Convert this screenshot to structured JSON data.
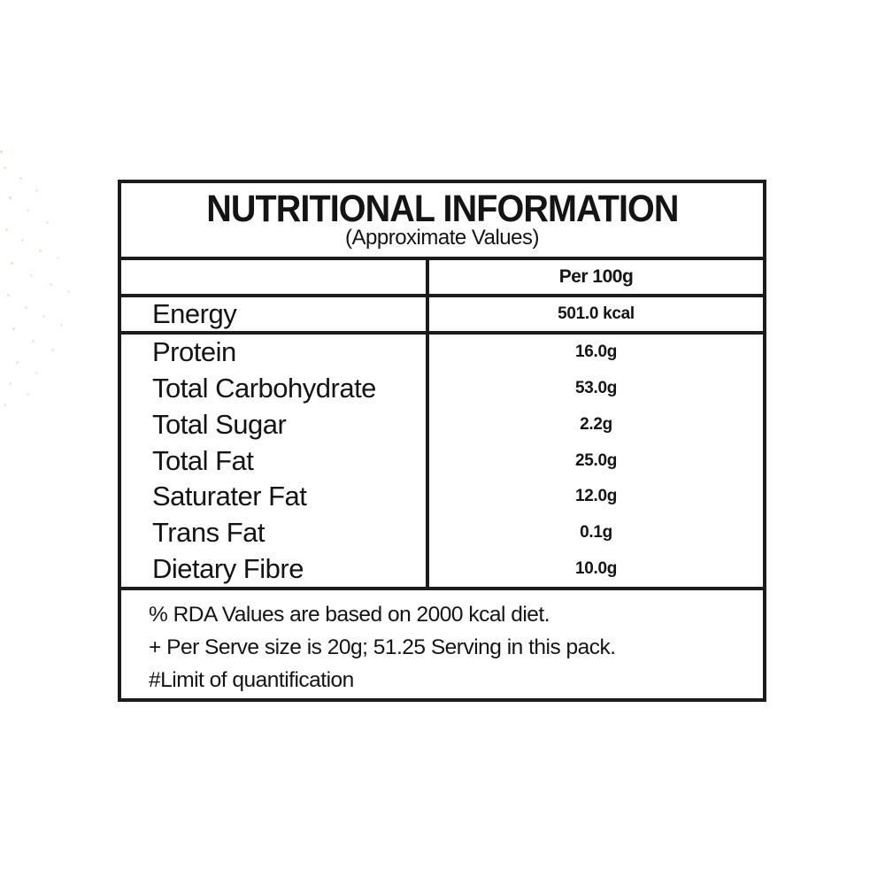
{
  "label": {
    "title": "NUTRITIONAL INFORMATION",
    "subtitle": "(Approximate Values)",
    "column_header": "Per 100g",
    "energy_row": {
      "label": "Energy",
      "value": "501.0 kcal"
    },
    "rows": [
      {
        "label": "Protein",
        "value": "16.0g"
      },
      {
        "label": "Total Carbohydrate",
        "value": "53.0g"
      },
      {
        "label": "Total Sugar",
        "value": "2.2g"
      },
      {
        "label": "Total Fat",
        "value": "25.0g"
      },
      {
        "label": "Saturater Fat",
        "value": "12.0g"
      },
      {
        "label": "Trans Fat",
        "value": "0.1g"
      },
      {
        "label": "Dietary Fibre",
        "value": "10.0g"
      }
    ],
    "footnotes": [
      "% RDA Values are based on 2000 kcal diet.",
      "+ Per Serve size is 20g; 51.25 Serving in this pack.",
      "#Limit of quantification"
    ]
  },
  "colors": {
    "border": "#1b1b1b",
    "text": "#141414",
    "dot_accent": "#d6966e"
  }
}
